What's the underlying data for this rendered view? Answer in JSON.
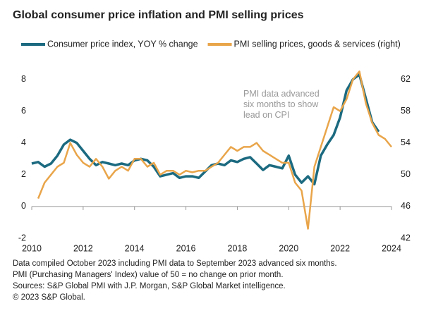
{
  "chart_data": {
    "type": "line",
    "title": "Global consumer price inflation and PMI selling prices",
    "annotation": "PMI data advanced six months to show lead on CPI",
    "notes": [
      "Data compiled October 2023 including PMI data to September 2023 advanced six months.",
      "PMI (Purchasing Managers' Index) value of 50 = no change on prior month.",
      "Sources: S&P Global PMI with J.P. Morgan, S&P Global Market intelligence.",
      "© 2023 S&P Global."
    ],
    "xlim": [
      2010,
      2024
    ],
    "xticks": [
      2010,
      2012,
      2014,
      2016,
      2018,
      2020,
      2022,
      2024
    ],
    "ylim": [
      -2,
      9
    ],
    "yticks": [
      -2,
      0,
      2,
      4,
      6,
      8
    ],
    "y2lim": [
      42,
      64
    ],
    "y2ticks": [
      42,
      46,
      50,
      54,
      58,
      62
    ],
    "series": [
      {
        "name": "Consumer price index, YOY % change",
        "color": "#1b6a80",
        "x": [
          2010,
          2010.25,
          2010.5,
          2010.75,
          2011,
          2011.25,
          2011.5,
          2011.75,
          2012,
          2012.25,
          2012.5,
          2012.75,
          2013,
          2013.25,
          2013.5,
          2013.75,
          2014,
          2014.25,
          2014.5,
          2014.75,
          2015,
          2015.25,
          2015.5,
          2015.75,
          2016,
          2016.25,
          2016.5,
          2016.75,
          2017,
          2017.25,
          2017.5,
          2017.75,
          2018,
          2018.25,
          2018.5,
          2018.75,
          2019,
          2019.25,
          2019.5,
          2019.75,
          2020,
          2020.25,
          2020.5,
          2020.75,
          2021,
          2021.25,
          2021.5,
          2021.75,
          2022,
          2022.25,
          2022.5,
          2022.75,
          2023,
          2023.25,
          2023.5
        ],
        "values": [
          2.7,
          2.8,
          2.5,
          2.7,
          3.2,
          3.9,
          4.2,
          4.0,
          3.5,
          3.0,
          2.6,
          2.8,
          2.7,
          2.6,
          2.7,
          2.6,
          2.9,
          3.0,
          2.9,
          2.5,
          1.9,
          2.0,
          2.1,
          1.8,
          1.9,
          1.9,
          1.8,
          2.2,
          2.6,
          2.7,
          2.6,
          2.9,
          2.8,
          3.0,
          3.1,
          2.7,
          2.3,
          2.6,
          2.5,
          2.4,
          3.2,
          2.0,
          1.5,
          1.9,
          1.4,
          3.2,
          3.9,
          4.5,
          5.6,
          7.3,
          8.0,
          8.3,
          6.8,
          5.3,
          4.7
        ]
      },
      {
        "name": "PMI selling prices, goods & services (right)",
        "color": "#e9a54a",
        "axis": "y2",
        "x": [
          2010.25,
          2010.5,
          2010.75,
          2011,
          2011.25,
          2011.5,
          2011.75,
          2012,
          2012.25,
          2012.5,
          2012.75,
          2013,
          2013.25,
          2013.5,
          2013.75,
          2014,
          2014.25,
          2014.5,
          2014.75,
          2015,
          2015.25,
          2015.5,
          2015.75,
          2016,
          2016.25,
          2016.5,
          2016.75,
          2017,
          2017.25,
          2017.5,
          2017.75,
          2018,
          2018.25,
          2018.5,
          2018.75,
          2019,
          2019.25,
          2019.5,
          2019.75,
          2020,
          2020.25,
          2020.5,
          2020.75,
          2021,
          2021.25,
          2021.5,
          2021.75,
          2022,
          2022.25,
          2022.5,
          2022.75,
          2023,
          2023.25,
          2023.5,
          2023.75,
          2024
        ],
        "values": [
          47,
          49,
          50,
          51,
          51.5,
          54,
          52.5,
          51.5,
          51,
          52,
          51,
          49.5,
          50.5,
          51,
          50.5,
          52,
          52,
          51,
          51.5,
          50,
          50.5,
          50.5,
          50,
          50.5,
          50.3,
          50.5,
          50.5,
          51,
          51.5,
          52.5,
          53.5,
          53,
          53.5,
          53.5,
          54,
          53,
          52.5,
          52,
          51.5,
          51.5,
          49,
          48,
          43.2,
          51,
          53.5,
          56,
          58.5,
          58,
          59.5,
          62,
          63,
          59,
          56.5,
          55,
          54.5,
          53.5
        ]
      }
    ]
  }
}
